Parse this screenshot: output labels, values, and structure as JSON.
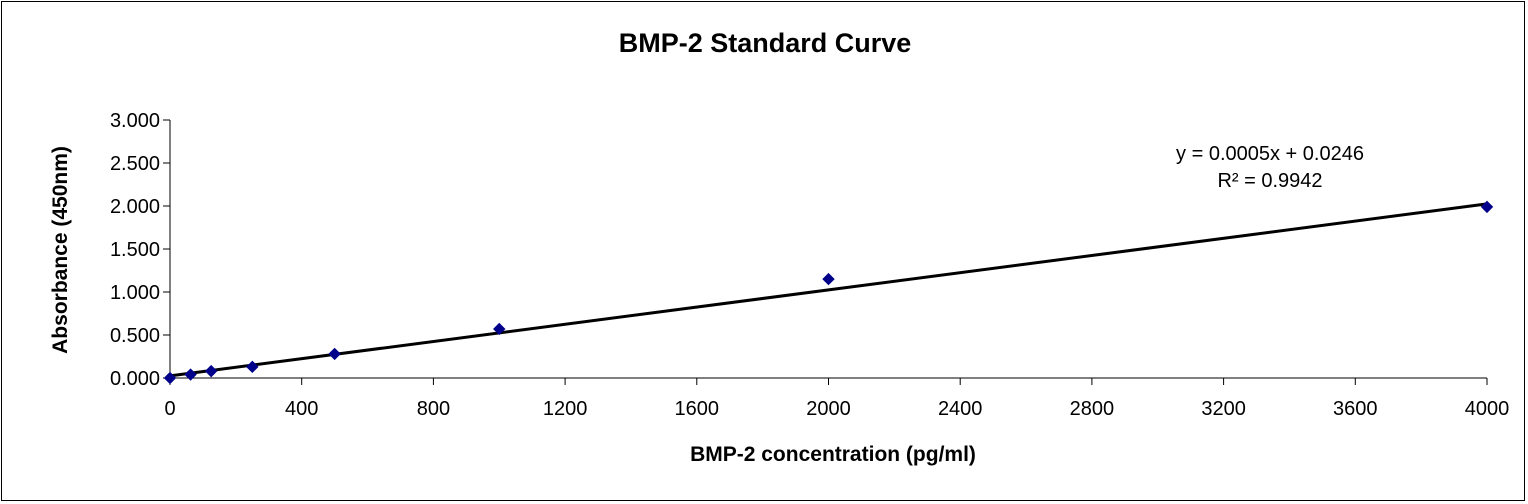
{
  "chart_data": {
    "type": "scatter",
    "title": "BMP-2 Standard Curve",
    "xlabel": "BMP-2 concentration (pg/ml)",
    "ylabel": "Absorbance (450nm)",
    "xlim": [
      0,
      4000
    ],
    "ylim": [
      0,
      3
    ],
    "x_ticks": [
      "0",
      "400",
      "800",
      "1200",
      "1600",
      "2000",
      "2400",
      "2800",
      "3200",
      "3600",
      "4000"
    ],
    "y_ticks": [
      "0.000",
      "0.500",
      "1.000",
      "1.500",
      "2.000",
      "2.500",
      "3.000"
    ],
    "grid": false,
    "series": [
      {
        "color": "#00008B",
        "marker": "diamond",
        "x": [
          0,
          62.5,
          125,
          250,
          500,
          1000,
          2000,
          4000
        ],
        "y": [
          0.0,
          0.04,
          0.08,
          0.13,
          0.28,
          0.57,
          1.15,
          1.99
        ]
      }
    ],
    "trendline": {
      "type": "linear",
      "slope": 0.0005,
      "intercept": 0.0246,
      "color": "#000000"
    },
    "annotations": [
      "y = 0.0005x + 0.0246",
      "R² = 0.9942"
    ]
  }
}
